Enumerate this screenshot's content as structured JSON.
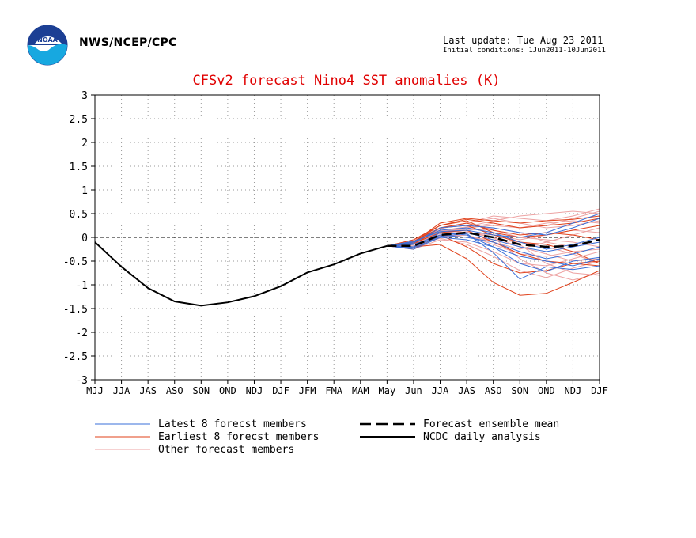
{
  "header": {
    "org": "NWS/NCEP/CPC",
    "last_update": "Last update: Tue Aug 23 2011",
    "initial_conditions": "Initial conditions: 1Jun2011-10Jun2011",
    "logo_text": "NOAA"
  },
  "colors": {
    "title": "#e00000",
    "latest": "#3a6fd8",
    "earliest": "#e0401a",
    "other": "#eda3a3",
    "analysis": "#000000",
    "grid": "#999999"
  },
  "chart_data": {
    "type": "line",
    "title": "CFSv2 forecast Nino4 SST anomalies (K)",
    "categories": [
      "MJJ",
      "JJA",
      "JAS",
      "ASO",
      "SON",
      "OND",
      "NDJ",
      "DJF",
      "JFM",
      "FMA",
      "MAM",
      "May",
      "Jun",
      "JJA",
      "JAS",
      "ASO",
      "SON",
      "OND",
      "NDJ",
      "DJF"
    ],
    "ylim": [
      -3,
      3
    ],
    "yticks": [
      "3",
      "2.5",
      "2",
      "1.5",
      "1",
      "0.5",
      "0",
      "-0.5",
      "-1",
      "-1.5",
      "-2",
      "-2.5",
      "-3"
    ],
    "grid": true,
    "legend_position": "bottom",
    "legend": {
      "latest": "Latest 8 forecst members",
      "earliest": "Earliest 8 forecst members",
      "other": "Other forecast members",
      "mean": "Forecast ensemble mean",
      "analysis": "NCDC daily analysis"
    },
    "analysis": [
      -0.1,
      -0.62,
      -1.07,
      -1.35,
      -1.44,
      -1.37,
      -1.24,
      -1.03,
      -0.74,
      -0.57,
      -0.34,
      -0.18
    ],
    "ensemble_mean": [
      -0.18,
      -0.18,
      0.05,
      0.1,
      0.0,
      -0.15,
      -0.2,
      -0.18,
      -0.05
    ],
    "ensemble_x_start": 11,
    "members": {
      "latest": [
        [
          -0.18,
          -0.22,
          0.02,
          0.08,
          -0.32,
          -0.88,
          -0.62,
          -0.68,
          -0.6
        ],
        [
          -0.18,
          -0.2,
          0.1,
          0.05,
          -0.2,
          -0.55,
          -0.72,
          -0.5,
          -0.42
        ],
        [
          -0.18,
          -0.15,
          0.05,
          0.0,
          -0.1,
          -0.3,
          -0.45,
          -0.35,
          -0.2
        ],
        [
          -0.18,
          -0.1,
          0.15,
          0.2,
          0.1,
          -0.1,
          -0.25,
          -0.15,
          0.0
        ],
        [
          -0.18,
          -0.12,
          0.2,
          0.25,
          0.2,
          0.1,
          0.05,
          0.2,
          0.4
        ],
        [
          -0.18,
          -0.08,
          0.12,
          0.15,
          0.05,
          0.0,
          0.1,
          0.3,
          0.5
        ],
        [
          -0.18,
          -0.25,
          0.0,
          -0.05,
          -0.2,
          -0.4,
          -0.5,
          -0.6,
          -0.45
        ],
        [
          -0.18,
          -0.2,
          0.05,
          0.1,
          -0.05,
          -0.2,
          -0.3,
          -0.2,
          -0.1
        ]
      ],
      "earliest": [
        [
          -0.18,
          -0.1,
          0.3,
          0.4,
          0.35,
          0.3,
          0.35,
          0.38,
          0.45
        ],
        [
          -0.18,
          -0.05,
          0.25,
          0.38,
          0.3,
          0.2,
          0.25,
          0.3,
          0.4
        ],
        [
          -0.18,
          -0.15,
          0.2,
          0.3,
          0.15,
          0.05,
          0.1,
          0.05,
          -0.05
        ],
        [
          -0.18,
          -0.12,
          0.1,
          0.15,
          -0.1,
          -0.35,
          -0.5,
          -0.55,
          -0.5
        ],
        [
          -0.18,
          -0.2,
          -0.15,
          -0.45,
          -0.95,
          -1.22,
          -1.18,
          -0.95,
          -0.7
        ],
        [
          -0.18,
          -0.25,
          0.05,
          -0.2,
          -0.55,
          -0.75,
          -0.7,
          -0.55,
          -0.6
        ],
        [
          -0.18,
          -0.08,
          0.2,
          0.25,
          0.05,
          -0.1,
          -0.15,
          -0.3,
          -0.55
        ],
        [
          -0.18,
          -0.1,
          0.25,
          0.35,
          0.1,
          0.0,
          0.05,
          0.15,
          0.25
        ]
      ],
      "other": [
        [
          -0.18,
          -0.1,
          0.2,
          0.3,
          0.45,
          0.4,
          0.35,
          0.45,
          0.6
        ],
        [
          -0.18,
          -0.15,
          0.1,
          0.2,
          0.3,
          0.2,
          0.25,
          0.4,
          0.55
        ],
        [
          -0.18,
          -0.2,
          0.0,
          0.05,
          -0.1,
          -0.25,
          -0.1,
          0.05,
          0.2
        ],
        [
          -0.18,
          -0.05,
          0.15,
          0.1,
          0.0,
          -0.2,
          -0.35,
          -0.5,
          -0.45
        ],
        [
          -0.18,
          -0.12,
          0.05,
          0.12,
          0.0,
          -0.45,
          -0.75,
          -0.9,
          -0.75
        ],
        [
          -0.18,
          -0.2,
          0.1,
          0.2,
          0.1,
          -0.15,
          -0.55,
          -0.75,
          -0.8
        ],
        [
          -0.18,
          -0.15,
          0.08,
          0.15,
          0.2,
          0.1,
          -0.1,
          -0.2,
          -0.1
        ],
        [
          -0.18,
          -0.1,
          0.12,
          0.2,
          0.25,
          0.2,
          0.3,
          0.35,
          0.3
        ],
        [
          -0.18,
          -0.25,
          -0.05,
          -0.1,
          -0.3,
          -0.55,
          -0.6,
          -0.45,
          -0.3
        ],
        [
          -0.18,
          -0.18,
          0.02,
          0.05,
          -0.15,
          -0.35,
          -0.4,
          -0.3,
          -0.25
        ],
        [
          -0.18,
          -0.1,
          0.18,
          0.3,
          0.4,
          0.3,
          0.2,
          0.25,
          0.35
        ],
        [
          -0.18,
          -0.15,
          0.05,
          0.0,
          -0.05,
          -0.1,
          -0.2,
          -0.35,
          -0.55
        ],
        [
          -0.18,
          -0.22,
          0.0,
          0.1,
          0.05,
          -0.05,
          0.05,
          0.15,
          0.1
        ],
        [
          -0.18,
          -0.12,
          0.1,
          0.18,
          0.15,
          0.0,
          -0.05,
          -0.1,
          -0.2
        ],
        [
          -0.18,
          -0.08,
          0.14,
          0.22,
          0.35,
          0.45,
          0.5,
          0.55,
          0.5
        ],
        [
          -0.18,
          -0.2,
          -0.02,
          -0.15,
          -0.4,
          -0.7,
          -0.85,
          -0.65,
          -0.5
        ]
      ]
    }
  }
}
